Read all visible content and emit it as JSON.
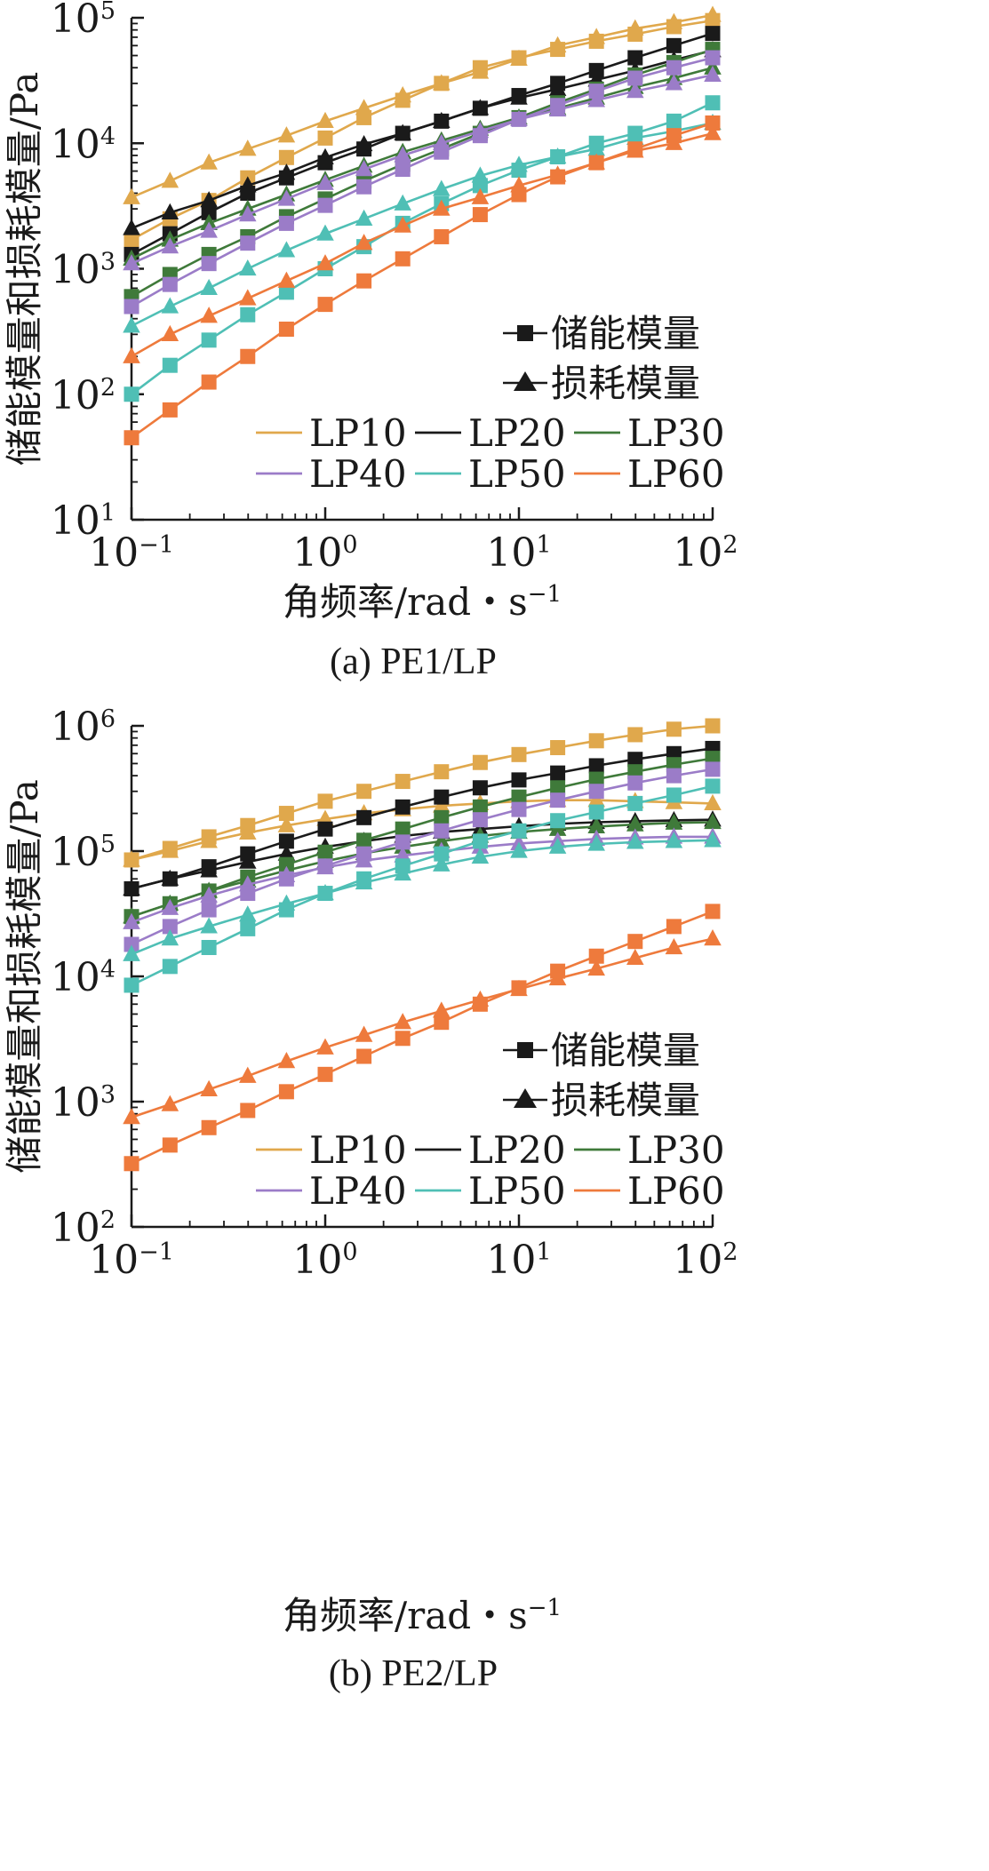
{
  "chart_data": [
    {
      "type": "line",
      "caption": "(a) PE1/LP",
      "xlabel": "角频率/rad・s",
      "xlabel_exponent": "−1",
      "ylabel": "储能模量和损耗模量/Pa",
      "xscale": "log",
      "yscale": "log",
      "xlim": [
        0.1,
        100
      ],
      "ylim": [
        10,
        100000
      ],
      "x_ticks": [
        {
          "base": "10",
          "exp": "−1"
        },
        {
          "base": "10",
          "exp": "0"
        },
        {
          "base": "10",
          "exp": "1"
        },
        {
          "base": "10",
          "exp": "2"
        }
      ],
      "y_ticks": [
        {
          "base": "10",
          "exp": "1"
        },
        {
          "base": "10",
          "exp": "2"
        },
        {
          "base": "10",
          "exp": "3"
        },
        {
          "base": "10",
          "exp": "4"
        },
        {
          "base": "10",
          "exp": "5"
        }
      ],
      "legend_markers": [
        {
          "label": "储能模量",
          "marker": "square"
        },
        {
          "label": "损耗模量",
          "marker": "triangle"
        }
      ],
      "legend_placement": "lower-right",
      "x": [
        0.1,
        0.158,
        0.251,
        0.398,
        0.631,
        1.0,
        1.585,
        2.512,
        3.981,
        6.31,
        10.0,
        15.85,
        25.12,
        39.81,
        63.1,
        100.0
      ],
      "series": [
        {
          "name": "LP10",
          "color": "#E0A84C",
          "storage": [
            1700,
            2500,
            3500,
            5300,
            7700,
            11000,
            16000,
            22000,
            30000,
            40000,
            48000,
            56000,
            65000,
            74000,
            85000,
            95000
          ],
          "loss": [
            3700,
            5000,
            7000,
            9000,
            11500,
            15000,
            19000,
            24000,
            30000,
            37000,
            47000,
            60000,
            70000,
            82000,
            92000,
            105000
          ]
        },
        {
          "name": "LP20",
          "color": "#1A1A1A",
          "storage": [
            1300,
            1900,
            2800,
            4000,
            5300,
            7000,
            9000,
            12000,
            15000,
            19000,
            24000,
            30000,
            38000,
            48000,
            60000,
            75000
          ],
          "loss": [
            2100,
            2800,
            3500,
            4600,
            5800,
            7700,
            9800,
            12000,
            15000,
            19000,
            23000,
            27000,
            32000,
            38000,
            46000,
            55000
          ]
        },
        {
          "name": "LP30",
          "color": "#3F7A3A",
          "storage": [
            600,
            900,
            1300,
            1800,
            2600,
            3600,
            5000,
            6800,
            9000,
            12000,
            16000,
            21000,
            27000,
            35000,
            44000,
            56000
          ],
          "loss": [
            1200,
            1700,
            2300,
            3000,
            3900,
            5100,
            6600,
            8500,
            10500,
            13000,
            16000,
            19000,
            23000,
            28000,
            33000,
            40000
          ]
        },
        {
          "name": "LP40",
          "color": "#9B7CC8",
          "storage": [
            500,
            750,
            1100,
            1600,
            2300,
            3200,
            4500,
            6200,
            8500,
            11500,
            15500,
            20000,
            26000,
            33000,
            40000,
            48000
          ],
          "loss": [
            1100,
            1500,
            2000,
            2700,
            3600,
            4800,
            6200,
            8000,
            10000,
            12500,
            15500,
            18500,
            22000,
            26000,
            30000,
            35000
          ]
        },
        {
          "name": "LP50",
          "color": "#4FBFB5",
          "storage": [
            100,
            170,
            270,
            430,
            650,
            1000,
            1500,
            2300,
            3300,
            4600,
            6100,
            7800,
            10000,
            12000,
            15000,
            21000
          ],
          "loss": [
            350,
            500,
            700,
            1000,
            1400,
            1900,
            2500,
            3300,
            4300,
            5500,
            6700,
            7800,
            9000,
            11000,
            12500,
            14500
          ]
        },
        {
          "name": "LP60",
          "color": "#EE7A3C",
          "storage": [
            45,
            75,
            125,
            200,
            330,
            520,
            800,
            1200,
            1800,
            2700,
            3900,
            5400,
            7000,
            9000,
            11500,
            14500
          ],
          "loss": [
            200,
            300,
            420,
            580,
            800,
            1100,
            1600,
            2200,
            3000,
            3700,
            4600,
            5600,
            7000,
            8700,
            10000,
            12000
          ]
        }
      ]
    },
    {
      "type": "line",
      "caption": "(b) PE2/LP",
      "xlabel": "角频率/rad・s",
      "xlabel_exponent": "−1",
      "ylabel": "储能模量和损耗模量/Pa",
      "xscale": "log",
      "yscale": "log",
      "xlim": [
        0.1,
        100
      ],
      "ylim": [
        100,
        1000000
      ],
      "x_ticks": [
        {
          "base": "10",
          "exp": "−1"
        },
        {
          "base": "10",
          "exp": "0"
        },
        {
          "base": "10",
          "exp": "1"
        },
        {
          "base": "10",
          "exp": "2"
        }
      ],
      "y_ticks": [
        {
          "base": "10",
          "exp": "2"
        },
        {
          "base": "10",
          "exp": "3"
        },
        {
          "base": "10",
          "exp": "4"
        },
        {
          "base": "10",
          "exp": "5"
        },
        {
          "base": "10",
          "exp": "6"
        }
      ],
      "legend_markers": [
        {
          "label": "储能模量",
          "marker": "square"
        },
        {
          "label": "损耗模量",
          "marker": "triangle"
        }
      ],
      "legend_placement": "lower-right",
      "x": [
        0.1,
        0.158,
        0.251,
        0.398,
        0.631,
        1.0,
        1.585,
        2.512,
        3.981,
        6.31,
        10.0,
        15.85,
        25.12,
        39.81,
        63.1,
        100.0
      ],
      "series": [
        {
          "name": "LP10",
          "color": "#E0A84C",
          "storage": [
            85000,
            105000,
            130000,
            160000,
            200000,
            250000,
            300000,
            360000,
            430000,
            510000,
            590000,
            670000,
            760000,
            850000,
            940000,
            1000000
          ],
          "loss": [
            85000,
            100000,
            120000,
            140000,
            160000,
            180000,
            200000,
            215000,
            230000,
            240000,
            250000,
            255000,
            255000,
            250000,
            245000,
            240000
          ]
        },
        {
          "name": "LP20",
          "color": "#1A1A1A",
          "storage": [
            50000,
            60000,
            75000,
            95000,
            120000,
            150000,
            185000,
            225000,
            270000,
            320000,
            370000,
            420000,
            480000,
            540000,
            600000,
            660000
          ],
          "loss": [
            50000,
            60000,
            70000,
            82000,
            95000,
            108000,
            120000,
            132000,
            142000,
            150000,
            158000,
            165000,
            170000,
            173000,
            176000,
            178000
          ]
        },
        {
          "name": "LP30",
          "color": "#3F7A3A",
          "storage": [
            30000,
            38000,
            48000,
            62000,
            78000,
            98000,
            122000,
            150000,
            185000,
            225000,
            270000,
            320000,
            375000,
            430000,
            490000,
            550000
          ],
          "loss": [
            30000,
            38000,
            48000,
            58000,
            70000,
            83000,
            96000,
            108000,
            120000,
            132000,
            142000,
            150000,
            157000,
            163000,
            168000,
            170000
          ]
        },
        {
          "name": "LP40",
          "color": "#9B7CC8",
          "storage": [
            18000,
            25000,
            34000,
            46000,
            60000,
            76000,
            95000,
            118000,
            145000,
            178000,
            215000,
            255000,
            300000,
            350000,
            400000,
            450000
          ],
          "loss": [
            27000,
            35000,
            44000,
            54000,
            64000,
            74000,
            84000,
            92000,
            100000,
            108000,
            115000,
            120000,
            125000,
            128000,
            130000,
            130000
          ]
        },
        {
          "name": "LP50",
          "color": "#4FBFB5",
          "storage": [
            8500,
            12000,
            17000,
            24000,
            34000,
            46000,
            60000,
            76000,
            95000,
            120000,
            145000,
            175000,
            205000,
            240000,
            280000,
            330000
          ],
          "loss": [
            15000,
            20000,
            25000,
            31000,
            38000,
            46000,
            56000,
            66000,
            78000,
            90000,
            100000,
            108000,
            114000,
            118000,
            120000,
            122000
          ]
        },
        {
          "name": "LP60",
          "color": "#EE7A3C",
          "storage": [
            320,
            450,
            620,
            850,
            1200,
            1650,
            2300,
            3200,
            4300,
            6000,
            8100,
            11000,
            14500,
            19000,
            25000,
            33000
          ],
          "loss": [
            750,
            950,
            1250,
            1600,
            2100,
            2700,
            3400,
            4300,
            5300,
            6500,
            7900,
            9600,
            11500,
            14000,
            17000,
            20000
          ]
        }
      ]
    }
  ]
}
